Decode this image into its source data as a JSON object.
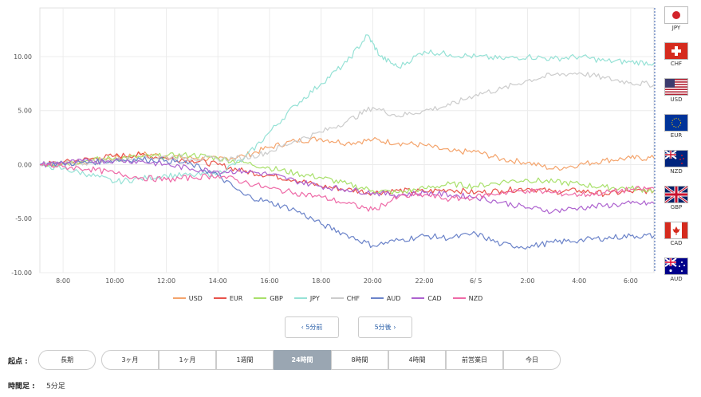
{
  "chart_data": {
    "type": "line",
    "yticks": [
      "10.00",
      "5.00",
      "0.00",
      "-5.00",
      "-10.00"
    ],
    "ytick_values": [
      10,
      5,
      0,
      -5,
      -10
    ],
    "xticks": [
      "8:00",
      "10:00",
      "12:00",
      "14:00",
      "16:00",
      "18:00",
      "20:00",
      "22:00",
      "6/ 5",
      "2:00",
      "4:00",
      "6:00"
    ],
    "xtick_hours": [
      8,
      10,
      12,
      14,
      16,
      18,
      20,
      22,
      24,
      26,
      28,
      30
    ],
    "xlim_hours": [
      7.1,
      30.9
    ],
    "ylim": [
      -10,
      14.5
    ],
    "grid": true,
    "series": [
      {
        "name": "USD",
        "color": "#f4a46c",
        "points": [
          [
            7.1,
            0
          ],
          [
            8,
            0.1
          ],
          [
            9,
            0.3
          ],
          [
            10,
            0.6
          ],
          [
            11,
            1.0
          ],
          [
            12,
            0.8
          ],
          [
            13,
            0.6
          ],
          [
            14,
            0.5
          ],
          [
            15,
            0.8
          ],
          [
            16,
            1.6
          ],
          [
            17,
            2.2
          ],
          [
            18,
            2.4
          ],
          [
            19,
            2.0
          ],
          [
            20,
            2.3
          ],
          [
            21,
            2.0
          ],
          [
            22,
            1.8
          ],
          [
            23,
            1.2
          ],
          [
            24,
            1.2
          ],
          [
            25,
            0.5
          ],
          [
            26,
            0.2
          ],
          [
            27,
            -0.4
          ],
          [
            28,
            0.0
          ],
          [
            29,
            0.4
          ],
          [
            30,
            0.6
          ],
          [
            30.9,
            0.6
          ]
        ]
      },
      {
        "name": "EUR",
        "color": "#e8534b",
        "points": [
          [
            7.1,
            0
          ],
          [
            8,
            0.2
          ],
          [
            9,
            0.5
          ],
          [
            10,
            0.8
          ],
          [
            11,
            0.9
          ],
          [
            12,
            0.6
          ],
          [
            13,
            0.4
          ],
          [
            14,
            0.0
          ],
          [
            15,
            -0.6
          ],
          [
            16,
            -1.0
          ],
          [
            17,
            -1.4
          ],
          [
            18,
            -2.0
          ],
          [
            19,
            -2.3
          ],
          [
            20,
            -2.6
          ],
          [
            21,
            -2.4
          ],
          [
            22,
            -2.5
          ],
          [
            23,
            -2.3
          ],
          [
            24,
            -2.6
          ],
          [
            25,
            -2.4
          ],
          [
            26,
            -2.2
          ],
          [
            27,
            -2.5
          ],
          [
            28,
            -2.4
          ],
          [
            29,
            -2.7
          ],
          [
            30,
            -2.5
          ],
          [
            30.9,
            -2.4
          ]
        ]
      },
      {
        "name": "GBP",
        "color": "#a8e06a",
        "points": [
          [
            7.1,
            0
          ],
          [
            8,
            0.1
          ],
          [
            9,
            0.4
          ],
          [
            10,
            0.6
          ],
          [
            11,
            0.7
          ],
          [
            12,
            0.8
          ],
          [
            13,
            0.9
          ],
          [
            14,
            0.6
          ],
          [
            15,
            0.2
          ],
          [
            16,
            -0.3
          ],
          [
            17,
            -0.8
          ],
          [
            18,
            -1.2
          ],
          [
            19,
            -1.8
          ],
          [
            20,
            -2.4
          ],
          [
            21,
            -2.6
          ],
          [
            22,
            -2.2
          ],
          [
            23,
            -1.8
          ],
          [
            24,
            -2.0
          ],
          [
            25,
            -1.6
          ],
          [
            26,
            -1.4
          ],
          [
            27,
            -1.6
          ],
          [
            28,
            -1.8
          ],
          [
            29,
            -2.1
          ],
          [
            30,
            -2.2
          ],
          [
            30.9,
            -2.4
          ]
        ]
      },
      {
        "name": "JPY",
        "color": "#96e2d6",
        "points": [
          [
            7.1,
            0
          ],
          [
            8,
            -0.4
          ],
          [
            9,
            -0.9
          ],
          [
            10,
            -1.6
          ],
          [
            11,
            -1.3
          ],
          [
            12,
            -1.0
          ],
          [
            13,
            -1.0
          ],
          [
            14,
            -0.8
          ],
          [
            15,
            0.5
          ],
          [
            16,
            3.0
          ],
          [
            17,
            5.5
          ],
          [
            18,
            7.5
          ],
          [
            19,
            9.5
          ],
          [
            19.8,
            12.0
          ],
          [
            20.3,
            10.0
          ],
          [
            21,
            9.0
          ],
          [
            22,
            10.5
          ],
          [
            23,
            10.2
          ],
          [
            24,
            10.0
          ],
          [
            25,
            9.8
          ],
          [
            26,
            10.0
          ],
          [
            27,
            9.8
          ],
          [
            28,
            10.0
          ],
          [
            29,
            9.6
          ],
          [
            30,
            9.5
          ],
          [
            30.9,
            9.4
          ]
        ]
      },
      {
        "name": "CHF",
        "color": "#cccccc",
        "points": [
          [
            7.1,
            0
          ],
          [
            8,
            0.1
          ],
          [
            9,
            0.2
          ],
          [
            10,
            0.4
          ],
          [
            11,
            0.6
          ],
          [
            12,
            0.7
          ],
          [
            13,
            0.6
          ],
          [
            14,
            0.5
          ],
          [
            15,
            0.6
          ],
          [
            16,
            1.2
          ],
          [
            17,
            2.2
          ],
          [
            18,
            3.0
          ],
          [
            19,
            4.0
          ],
          [
            20,
            5.3
          ],
          [
            21,
            4.5
          ],
          [
            22,
            5.0
          ],
          [
            23,
            5.5
          ],
          [
            24,
            6.5
          ],
          [
            25,
            7.0
          ],
          [
            26,
            7.8
          ],
          [
            27,
            8.3
          ],
          [
            28,
            8.5
          ],
          [
            29,
            8.0
          ],
          [
            30,
            7.6
          ],
          [
            30.9,
            7.4
          ]
        ]
      },
      {
        "name": "AUD",
        "color": "#6b83c9",
        "points": [
          [
            7.1,
            0
          ],
          [
            8,
            0.1
          ],
          [
            9,
            0.2
          ],
          [
            10,
            0.4
          ],
          [
            11,
            0.5
          ],
          [
            12,
            0.4
          ],
          [
            13,
            0.0
          ],
          [
            14,
            -1.0
          ],
          [
            15,
            -2.8
          ],
          [
            16,
            -3.5
          ],
          [
            17,
            -4.2
          ],
          [
            18,
            -5.5
          ],
          [
            19,
            -6.5
          ],
          [
            20,
            -7.5
          ],
          [
            21,
            -7.0
          ],
          [
            22,
            -6.6
          ],
          [
            23,
            -6.8
          ],
          [
            24,
            -6.4
          ],
          [
            25,
            -7.4
          ],
          [
            26,
            -7.6
          ],
          [
            27,
            -7.2
          ],
          [
            28,
            -7.0
          ],
          [
            29,
            -6.8
          ],
          [
            30,
            -6.6
          ],
          [
            30.9,
            -6.6
          ]
        ]
      },
      {
        "name": "CAD",
        "color": "#ad62cf",
        "points": [
          [
            7.1,
            0
          ],
          [
            8,
            0.2
          ],
          [
            9,
            0.3
          ],
          [
            10,
            0.4
          ],
          [
            11,
            0.3
          ],
          [
            12,
            0.0
          ],
          [
            13,
            -0.4
          ],
          [
            14,
            -0.6
          ],
          [
            15,
            -0.6
          ],
          [
            16,
            -0.9
          ],
          [
            17,
            -1.5
          ],
          [
            18,
            -2.0
          ],
          [
            19,
            -2.3
          ],
          [
            20,
            -2.6
          ],
          [
            21,
            -2.8
          ],
          [
            22,
            -2.6
          ],
          [
            23,
            -2.8
          ],
          [
            24,
            -3.0
          ],
          [
            25,
            -3.5
          ],
          [
            26,
            -4.0
          ],
          [
            27,
            -4.3
          ],
          [
            28,
            -4.0
          ],
          [
            29,
            -3.8
          ],
          [
            30,
            -3.6
          ],
          [
            30.9,
            -3.6
          ]
        ]
      },
      {
        "name": "NZD",
        "color": "#ee6aa7",
        "points": [
          [
            7.1,
            0
          ],
          [
            8,
            -0.2
          ],
          [
            9,
            -0.4
          ],
          [
            10,
            -0.8
          ],
          [
            11,
            -1.2
          ],
          [
            12,
            -1.4
          ],
          [
            13,
            -1.2
          ],
          [
            14,
            -1.0
          ],
          [
            15,
            -1.6
          ],
          [
            16,
            -2.2
          ],
          [
            17,
            -2.6
          ],
          [
            18,
            -3.0
          ],
          [
            19,
            -3.6
          ],
          [
            20,
            -4.2
          ],
          [
            21,
            -3.0
          ],
          [
            22,
            -2.8
          ],
          [
            23,
            -3.2
          ],
          [
            24,
            -3.0
          ],
          [
            25,
            -2.6
          ],
          [
            26,
            -2.4
          ],
          [
            27,
            -2.6
          ],
          [
            28,
            -2.8
          ],
          [
            29,
            -2.6
          ],
          [
            30,
            -2.3
          ],
          [
            30.9,
            -2.2
          ]
        ]
      }
    ]
  },
  "flags": [
    {
      "code": "JPY",
      "kind": "jpy"
    },
    {
      "code": "CHF",
      "kind": "chf"
    },
    {
      "code": "USD",
      "kind": "usd"
    },
    {
      "code": "EUR",
      "kind": "eur"
    },
    {
      "code": "NZD",
      "kind": "nzd"
    },
    {
      "code": "GBP",
      "kind": "gbp"
    },
    {
      "code": "CAD",
      "kind": "cad"
    },
    {
      "code": "AUD",
      "kind": "aud"
    }
  ],
  "nav": {
    "prev_label": "‹ 5分前",
    "next_label": "5分後 ›"
  },
  "start_row": {
    "label": "起点 :",
    "options": [
      "長期",
      "3ヶ月",
      "1ヶ月",
      "1週間",
      "24時間",
      "8時間",
      "4時間",
      "前営業日",
      "今日"
    ],
    "selected": "24時間"
  },
  "timeframe": {
    "label": "時間足 :",
    "value": "5分足"
  }
}
